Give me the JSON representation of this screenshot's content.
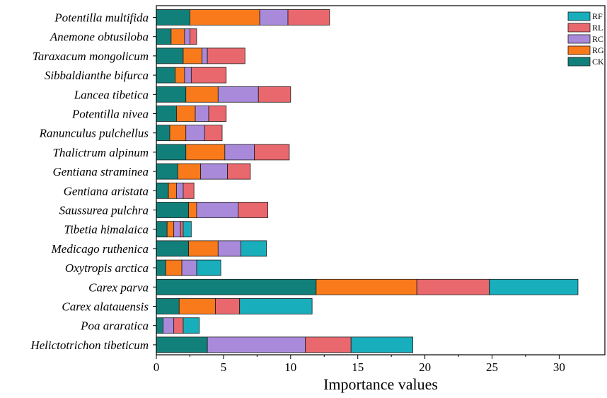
{
  "chart_data": {
    "type": "bar",
    "orientation": "horizontal",
    "stacked": true,
    "xlabel": "Importance values",
    "ylabel": "",
    "xlim": [
      0,
      33
    ],
    "xticks": [
      0,
      5,
      10,
      15,
      20,
      25,
      30
    ],
    "grid": false,
    "legend_placement": "top-right",
    "categories": [
      "Potentilla multifida",
      "Anemone obtusiloba",
      "Taraxacum mongolicum",
      "Sibbaldianthe bifurca",
      "Lancea tibetica",
      "Potentilla nivea",
      "Ranunculus pulchellus",
      "Thalictrum alpinum",
      "Gentiana straminea",
      "Gentiana aristata",
      "Saussurea pulchra",
      "Tibetia himalaica",
      "Medicago ruthenica",
      "Oxytropis arctica",
      "Carex parva",
      "Carex alatauensis",
      "Poa araratica",
      "Helictotrichon tibeticum"
    ],
    "stack_order": [
      "CK",
      "RG",
      "RC",
      "RL",
      "RF"
    ],
    "series": [
      {
        "name": "CK",
        "color": "#12807a",
        "values": [
          2.5,
          1.1,
          2.0,
          1.4,
          2.2,
          1.5,
          1.0,
          2.2,
          1.6,
          0.9,
          2.4,
          0.8,
          2.4,
          0.7,
          11.9,
          1.7,
          0.5,
          3.8
        ]
      },
      {
        "name": "RG",
        "color": "#f97a1b",
        "values": [
          5.2,
          1.0,
          1.4,
          0.7,
          2.4,
          1.4,
          1.2,
          2.9,
          1.7,
          0.6,
          0.6,
          0.5,
          2.2,
          1.2,
          7.5,
          2.7,
          0,
          0
        ]
      },
      {
        "name": "RC",
        "color": "#a98ada",
        "values": [
          2.1,
          0.4,
          0.4,
          0.5,
          3.0,
          1.0,
          1.4,
          2.2,
          2.0,
          0.5,
          3.1,
          0.5,
          1.7,
          1.1,
          0,
          0,
          0.8,
          7.3
        ]
      },
      {
        "name": "RL",
        "color": "#e9686e",
        "values": [
          3.1,
          0.5,
          2.8,
          2.6,
          2.4,
          1.3,
          1.3,
          2.6,
          1.7,
          0.8,
          2.2,
          0.2,
          0,
          0,
          5.4,
          1.8,
          0.7,
          3.4
        ]
      },
      {
        "name": "RF",
        "color": "#19aebc",
        "values": [
          0,
          0,
          0,
          0,
          0,
          0,
          0,
          0,
          0,
          0,
          0,
          0.6,
          1.9,
          1.8,
          6.6,
          5.4,
          1.2,
          4.6
        ]
      }
    ],
    "legend_entries": [
      "RF",
      "RL",
      "RC",
      "RG",
      "CK"
    ]
  }
}
